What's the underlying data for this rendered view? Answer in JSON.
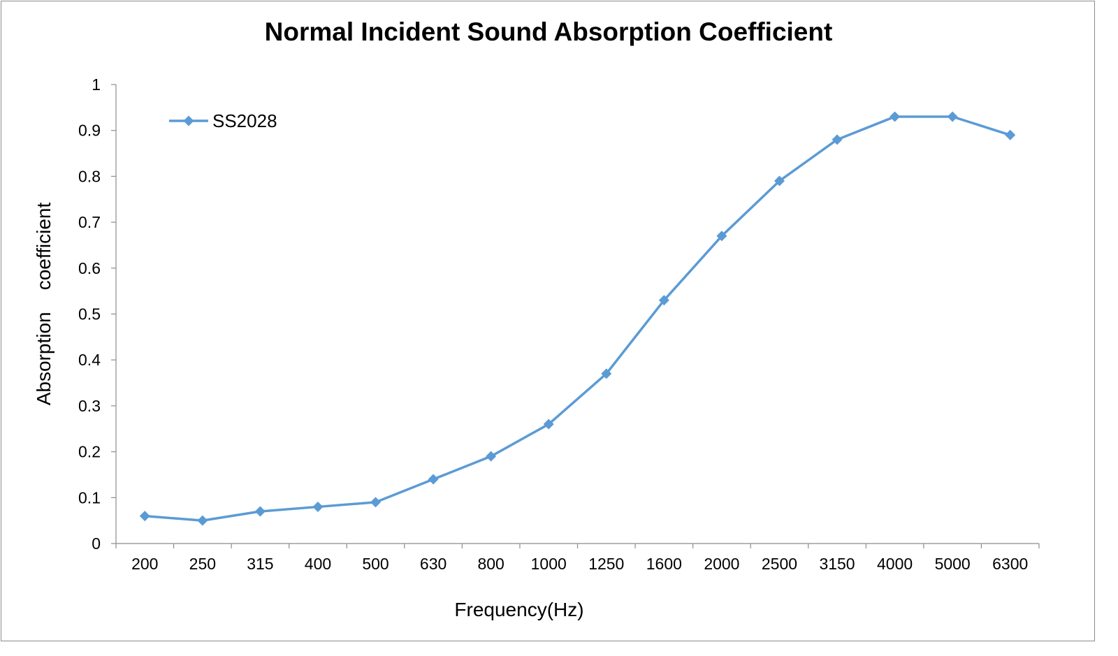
{
  "chart_data": {
    "type": "line",
    "title": "Normal Incident Sound Absorption Coefficient",
    "xlabel": "Frequency(Hz)",
    "ylabel": "Absorption    coefficient",
    "categories": [
      "200",
      "250",
      "315",
      "400",
      "500",
      "630",
      "800",
      "1000",
      "1250",
      "1600",
      "2000",
      "2500",
      "3150",
      "4000",
      "5000",
      "6300"
    ],
    "series": [
      {
        "name": "SS2028",
        "values": [
          0.06,
          0.05,
          0.07,
          0.08,
          0.09,
          0.14,
          0.19,
          0.26,
          0.37,
          0.53,
          0.67,
          0.79,
          0.88,
          0.93,
          0.93,
          0.89
        ]
      }
    ],
    "ylim": [
      0,
      1
    ],
    "yticks": [
      "0",
      "0.1",
      "0.2",
      "0.3",
      "0.4",
      "0.5",
      "0.6",
      "0.7",
      "0.8",
      "0.9",
      "1"
    ],
    "grid": false,
    "legend_position": "top-left",
    "series_color": "#5b9bd5",
    "marker": "diamond"
  }
}
